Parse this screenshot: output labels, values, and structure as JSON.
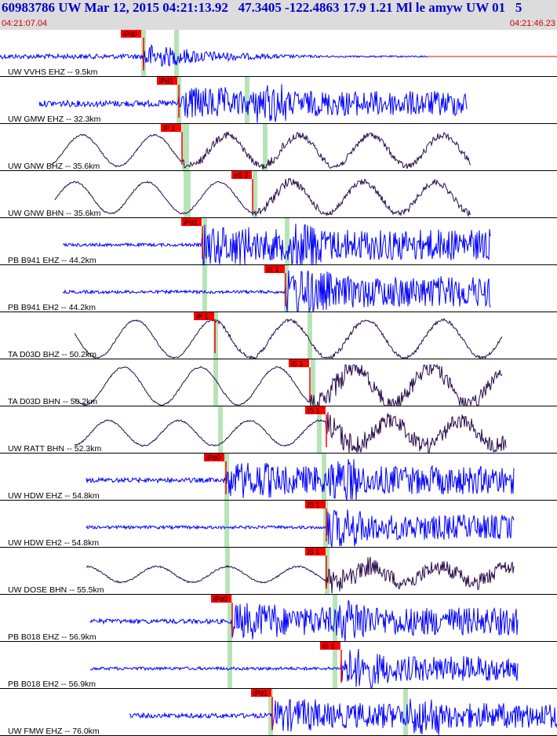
{
  "header": {
    "title": "60983786 UW Mar 12, 2015 04:21:13.92   47.3405 -122.4863 17.9 1.21 Ml le amyw UW 01   5",
    "start_time": "04:21:07.04",
    "end_time": "04:21:46.23"
  },
  "colors": {
    "vertical_trace": "#0000ff",
    "horizontal_trace": "#2a0a4a",
    "pick_flag": "#ff0000",
    "window": "#b7e4b7",
    "separator": "#000000"
  },
  "traces": [
    {
      "label": "UW VVHS EHZ -- 9.5km",
      "pick": "iPd0"
    },
    {
      "label": "UW GMW EHZ -- 32.3km",
      "pick": "iPd1"
    },
    {
      "label": "UW GNW BHZ -- 35.6km",
      "pick": "iP 1"
    },
    {
      "label": "UW GNW BHN -- 35.6km",
      "pick": "eS 2"
    },
    {
      "label": "PB B941 EHZ -- 44.2km",
      "pick": "iPd1"
    },
    {
      "label": "PB B941 EH2 -- 44.2km",
      "pick": "iS 1"
    },
    {
      "label": "TA D03D BHZ -- 50.2km",
      "pick": "iP 1"
    },
    {
      "label": "TA D03D BHN -- 50.2km",
      "pick": "iS 1"
    },
    {
      "label": "UW RATT BHN -- 52.3km",
      "pick": "iS 1"
    },
    {
      "label": "UW HDW EHZ -- 54.8km",
      "pick": "iPd0"
    },
    {
      "label": "UW HDW EH2 -- 54.8km",
      "pick": "iS 1"
    },
    {
      "label": "UW DOSE BHN -- 55.5km",
      "pick": "iS 1"
    },
    {
      "label": "PB B018 EHZ -- 56.9km",
      "pick": "iPd0"
    },
    {
      "label": "PB B018 EH2 -- 56.9km",
      "pick": "iS 1"
    },
    {
      "label": "UW FMW EHZ -- 76.0km",
      "pick": "iPd1"
    }
  ]
}
